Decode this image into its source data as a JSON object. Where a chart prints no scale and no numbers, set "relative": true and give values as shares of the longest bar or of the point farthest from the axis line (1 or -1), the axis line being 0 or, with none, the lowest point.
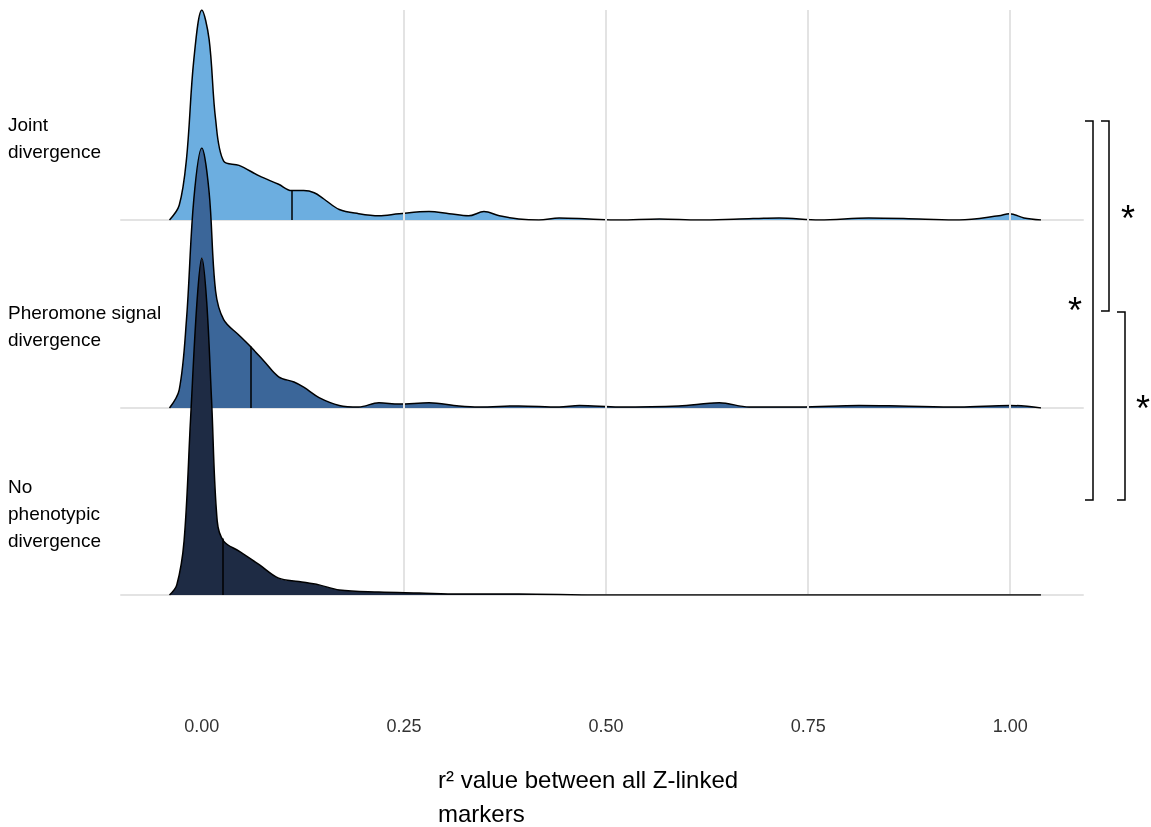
{
  "chart_data": [
    {
      "type": "area",
      "relative": true,
      "ylabel": "Joint divergence",
      "xlim": [
        -0.1,
        1.09
      ],
      "xticks": [
        {
          "value": 0,
          "label": "0.00"
        },
        {
          "value": 0.25,
          "label": "0.25"
        },
        {
          "value": 0.5,
          "label": "0.50"
        },
        {
          "value": 0.75,
          "label": "0.75"
        },
        {
          "value": 1,
          "label": "1.00"
        }
      ],
      "tick_labels": false,
      "grid": "x",
      "annotations": [
        "*",
        "*",
        "*"
      ],
      "series": [
        {
          "color": "#6caee0",
          "x": [
            -0.04,
            -0.028,
            -0.019,
            -0.01,
            0,
            0.009,
            0.017,
            0.027,
            0.046,
            0.071,
            0.095,
            0.111,
            0.126,
            0.139,
            0.151,
            0.17,
            0.194,
            0.219,
            0.244,
            0.281,
            0.306,
            0.33,
            0.349,
            0.368,
            0.392,
            0.417,
            0.442,
            0.479,
            0.516,
            0.566,
            0.615,
            0.665,
            0.714,
            0.764,
            0.825,
            0.887,
            0.937,
            0.986,
            0.999,
            1.017,
            1.038
          ],
          "values": [
            0,
            0.07,
            0.29,
            0.76,
            1,
            0.86,
            0.48,
            0.28,
            0.26,
            0.21,
            0.17,
            0.14,
            0.14,
            0.13,
            0.1,
            0.05,
            0.03,
            0.02,
            0.03,
            0.04,
            0.03,
            0.02,
            0.04,
            0.02,
            0.005,
            0,
            0.01,
            0.005,
            0,
            0.005,
            0,
            0.005,
            0.01,
            0,
            0.01,
            0.005,
            0,
            0.02,
            0.03,
            0.01,
            0
          ]
        }
      ],
      "ref_lines": [
        {
          "axis": "x",
          "value": 0.111
        }
      ]
    },
    {
      "type": "area",
      "relative": true,
      "ylabel": "Pheromone signal divergence",
      "xlim": [
        -0.1,
        1.09
      ],
      "xticks": [
        {
          "value": 0,
          "label": "0.00"
        },
        {
          "value": 0.25,
          "label": "0.25"
        },
        {
          "value": 0.5,
          "label": "0.50"
        },
        {
          "value": 0.75,
          "label": "0.75"
        },
        {
          "value": 1,
          "label": "1.00"
        }
      ],
      "tick_labels": false,
      "grid": "x",
      "series": [
        {
          "color": "#3b6699",
          "x": [
            -0.04,
            -0.028,
            -0.019,
            -0.01,
            0,
            0.009,
            0.017,
            0.027,
            0.046,
            0.059,
            0.077,
            0.095,
            0.114,
            0.126,
            0.145,
            0.17,
            0.194,
            0.219,
            0.244,
            0.281,
            0.318,
            0.343,
            0.392,
            0.442,
            0.467,
            0.516,
            0.59,
            0.64,
            0.677,
            0.739,
            0.813,
            0.863,
            0.937,
            0.999,
            1.038
          ],
          "values": [
            0,
            0.07,
            0.34,
            0.8,
            1,
            0.83,
            0.45,
            0.34,
            0.28,
            0.24,
            0.18,
            0.12,
            0.1,
            0.08,
            0.04,
            0.01,
            0.004,
            0.02,
            0.015,
            0.02,
            0.008,
            0.004,
            0.008,
            0.004,
            0.01,
            0.004,
            0.008,
            0.02,
            0.004,
            0.004,
            0.01,
            0.008,
            0.004,
            0.01,
            0
          ]
        }
      ],
      "ref_lines": [
        {
          "axis": "x",
          "value": 0.06
        }
      ]
    },
    {
      "type": "area",
      "relative": true,
      "ylabel": "No phenotypic divergence",
      "xlabel": "r² value between all Z-linked markers",
      "xlim": [
        -0.1,
        1.09
      ],
      "xticks": [
        {
          "value": 0,
          "label": "0.00"
        },
        {
          "value": 0.25,
          "label": "0.25"
        },
        {
          "value": 0.5,
          "label": "0.50"
        },
        {
          "value": 0.75,
          "label": "0.75"
        },
        {
          "value": 1,
          "label": "1.00"
        }
      ],
      "tick_labels": "x",
      "grid": "x",
      "series": [
        {
          "color": "#1e2b44",
          "x": [
            -0.04,
            -0.031,
            -0.022,
            -0.014,
            -0.006,
            0,
            0.006,
            0.012,
            0.019,
            0.027,
            0.046,
            0.071,
            0.095,
            0.12,
            0.145,
            0.17,
            0.219,
            0.269,
            0.318,
            0.392,
            0.491,
            0.615,
            0.739,
            1.038
          ],
          "values": [
            0,
            0.03,
            0.16,
            0.52,
            0.87,
            1,
            0.87,
            0.58,
            0.22,
            0.16,
            0.13,
            0.09,
            0.05,
            0.04,
            0.03,
            0.015,
            0.009,
            0.006,
            0.003,
            0.003,
            0,
            0,
            0,
            0
          ]
        }
      ],
      "ref_lines": [
        {
          "axis": "x",
          "value": 0.026
        }
      ]
    }
  ]
}
